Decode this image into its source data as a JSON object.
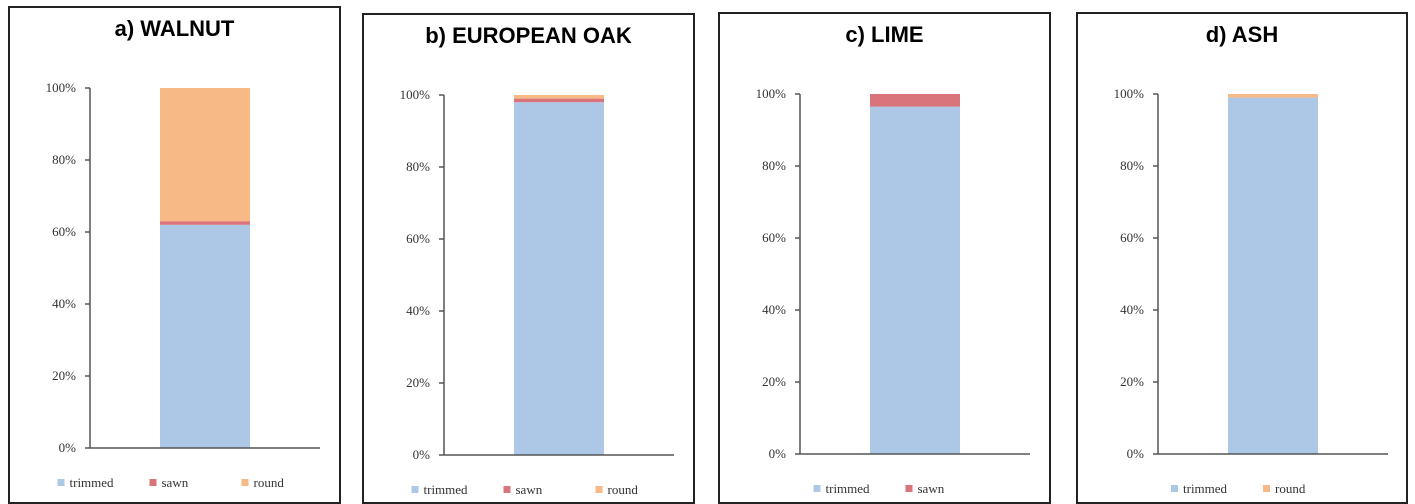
{
  "colors": {
    "trimmed": "#adc8e7",
    "sawn": "#d9747a",
    "round": "#f7b985",
    "axis": "#555555"
  },
  "chart_data": [
    {
      "type": "bar",
      "stacked": true,
      "title": "a) WALNUT",
      "categories": [
        ""
      ],
      "series": [
        {
          "name": "trimmed",
          "values": [
            62
          ]
        },
        {
          "name": "sawn",
          "values": [
            1
          ]
        },
        {
          "name": "round",
          "values": [
            37
          ]
        }
      ],
      "ylim": [
        0,
        100
      ],
      "yticks": [
        "0%",
        "20%",
        "40%",
        "60%",
        "80%",
        "100%"
      ],
      "grid": false,
      "legend": "bottom"
    },
    {
      "type": "bar",
      "stacked": true,
      "title": "b) EUROPEAN OAK",
      "categories": [
        ""
      ],
      "series": [
        {
          "name": "trimmed",
          "values": [
            98
          ]
        },
        {
          "name": "sawn",
          "values": [
            1
          ]
        },
        {
          "name": "round",
          "values": [
            1
          ]
        }
      ],
      "ylim": [
        0,
        100
      ],
      "yticks": [
        "0%",
        "20%",
        "40%",
        "60%",
        "80%",
        "100%"
      ],
      "grid": false,
      "legend": "bottom"
    },
    {
      "type": "bar",
      "stacked": true,
      "title": "c) LIME",
      "categories": [
        ""
      ],
      "series": [
        {
          "name": "trimmed",
          "values": [
            96.5
          ]
        },
        {
          "name": "sawn",
          "values": [
            3.5
          ]
        }
      ],
      "ylim": [
        0,
        100
      ],
      "yticks": [
        "0%",
        "20%",
        "40%",
        "60%",
        "80%",
        "100%"
      ],
      "grid": false,
      "legend": "bottom"
    },
    {
      "type": "bar",
      "stacked": true,
      "title": "d) ASH",
      "categories": [
        ""
      ],
      "series": [
        {
          "name": "trimmed",
          "values": [
            99
          ]
        },
        {
          "name": "round",
          "values": [
            1
          ]
        }
      ],
      "ylim": [
        0,
        100
      ],
      "yticks": [
        "0%",
        "20%",
        "40%",
        "60%",
        "80%",
        "100%"
      ],
      "grid": false,
      "legend": "bottom"
    }
  ]
}
